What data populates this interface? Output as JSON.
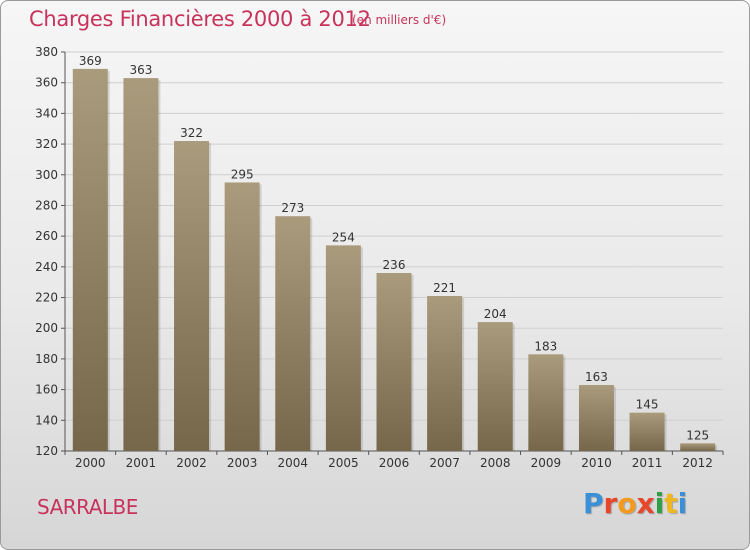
{
  "header": {
    "title": "Charges Financières 2000 à 2012",
    "subtitle": "(en milliers d'€)"
  },
  "footer": {
    "commune": "SARRALBE",
    "brand": "Proxiti"
  },
  "colors": {
    "title": "#c8335c",
    "bar_light": "#aa9a7c",
    "bar_dark": "#7a6a4c",
    "grid": "#cfcfcf"
  },
  "chart_data": {
    "type": "bar",
    "title": "Charges Financières 2000 à 2012",
    "subtitle": "(en milliers d'€)",
    "xlabel": "",
    "ylabel": "",
    "categories": [
      "2000",
      "2001",
      "2002",
      "2003",
      "2004",
      "2005",
      "2006",
      "2007",
      "2008",
      "2009",
      "2010",
      "2011",
      "2012"
    ],
    "values": [
      369,
      363,
      322,
      295,
      273,
      254,
      236,
      221,
      204,
      183,
      163,
      145,
      125
    ],
    "ylim": [
      120,
      380
    ],
    "yticks": [
      120,
      140,
      160,
      180,
      200,
      220,
      240,
      260,
      280,
      300,
      320,
      340,
      360,
      380
    ],
    "grid": true,
    "legend": "none"
  }
}
